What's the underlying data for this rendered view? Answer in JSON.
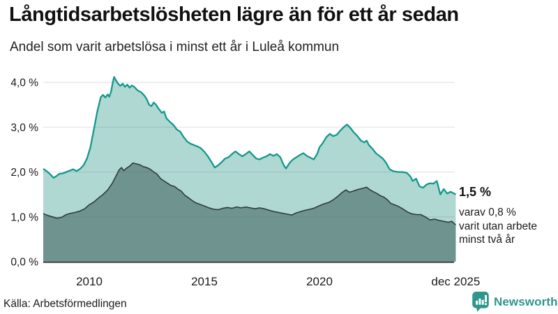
{
  "header": {
    "title": "Långtidsarbetslösheten lägre än för ett år sedan",
    "subtitle": "Andel som varit arbetslösa i minst ett år i Luleå kommun"
  },
  "footer": {
    "source": "Källa: Arbetsförmedlingen",
    "brand": "Newsworthy"
  },
  "colors": {
    "accent_teal": "#12998b",
    "light_fill": "#b0d8d2",
    "dark_line": "#2e3c3b",
    "dark_fill": "#6f948f",
    "gridline": "#e2e2ea",
    "axis": "#3a3a3a",
    "brand_teal": "#2e968a"
  },
  "chart_data": {
    "type": "area",
    "title": "Långtidsarbetslösheten lägre än för ett år sedan",
    "subtitle": "Andel som varit arbetslösa i minst ett år i Luleå kommun",
    "xlabel": "",
    "ylabel": "",
    "xlim": [
      2008.0,
      2025.92
    ],
    "ylim": [
      0,
      4.3
    ],
    "grid": true,
    "legend_position": "none",
    "y_ticks": [
      {
        "label": "0,0 %",
        "value": 0
      },
      {
        "label": "1,0 %",
        "value": 1
      },
      {
        "label": "2,0 %",
        "value": 2
      },
      {
        "label": "3,0 %",
        "value": 3
      },
      {
        "label": "4,0 %",
        "value": 4
      }
    ],
    "x_ticks": [
      {
        "label": "2010",
        "value": 2010
      },
      {
        "label": "2015",
        "value": 2015
      },
      {
        "label": "2020",
        "value": 2020
      },
      {
        "label": "dec 2025",
        "value": 2025.92
      }
    ],
    "annotation": {
      "value_label": "1,5 %",
      "lines": [
        "varav 0,8 %",
        "varit utan arbete",
        "minst två år"
      ]
    },
    "series": [
      {
        "name": "Arbetslösa minst ett år",
        "final_value": 1.5,
        "points": [
          [
            2008.0,
            2.07
          ],
          [
            2008.15,
            2.02
          ],
          [
            2008.3,
            1.95
          ],
          [
            2008.45,
            1.87
          ],
          [
            2008.55,
            1.9
          ],
          [
            2008.7,
            1.96
          ],
          [
            2008.85,
            1.97
          ],
          [
            2009.0,
            2.0
          ],
          [
            2009.15,
            2.03
          ],
          [
            2009.3,
            2.06
          ],
          [
            2009.45,
            2.02
          ],
          [
            2009.6,
            2.07
          ],
          [
            2009.75,
            2.15
          ],
          [
            2009.9,
            2.3
          ],
          [
            2010.05,
            2.55
          ],
          [
            2010.2,
            2.95
          ],
          [
            2010.35,
            3.35
          ],
          [
            2010.5,
            3.67
          ],
          [
            2010.6,
            3.72
          ],
          [
            2010.7,
            3.66
          ],
          [
            2010.8,
            3.73
          ],
          [
            2010.87,
            3.68
          ],
          [
            2010.95,
            3.8
          ],
          [
            2011.02,
            4.0
          ],
          [
            2011.08,
            4.12
          ],
          [
            2011.15,
            4.05
          ],
          [
            2011.25,
            3.97
          ],
          [
            2011.35,
            3.92
          ],
          [
            2011.45,
            3.97
          ],
          [
            2011.55,
            3.9
          ],
          [
            2011.65,
            3.95
          ],
          [
            2011.75,
            3.88
          ],
          [
            2011.85,
            3.93
          ],
          [
            2011.95,
            3.9
          ],
          [
            2012.1,
            3.82
          ],
          [
            2012.25,
            3.78
          ],
          [
            2012.4,
            3.7
          ],
          [
            2012.5,
            3.62
          ],
          [
            2012.6,
            3.5
          ],
          [
            2012.7,
            3.47
          ],
          [
            2012.8,
            3.55
          ],
          [
            2012.9,
            3.5
          ],
          [
            2013.0,
            3.42
          ],
          [
            2013.15,
            3.32
          ],
          [
            2013.25,
            3.35
          ],
          [
            2013.35,
            3.2
          ],
          [
            2013.5,
            3.12
          ],
          [
            2013.65,
            3.05
          ],
          [
            2013.8,
            2.95
          ],
          [
            2013.95,
            2.9
          ],
          [
            2014.1,
            2.78
          ],
          [
            2014.25,
            2.68
          ],
          [
            2014.4,
            2.63
          ],
          [
            2014.55,
            2.6
          ],
          [
            2014.7,
            2.57
          ],
          [
            2014.85,
            2.53
          ],
          [
            2015.0,
            2.45
          ],
          [
            2015.15,
            2.35
          ],
          [
            2015.3,
            2.23
          ],
          [
            2015.45,
            2.1
          ],
          [
            2015.6,
            2.15
          ],
          [
            2015.75,
            2.22
          ],
          [
            2015.9,
            2.3
          ],
          [
            2016.05,
            2.33
          ],
          [
            2016.2,
            2.4
          ],
          [
            2016.35,
            2.46
          ],
          [
            2016.5,
            2.4
          ],
          [
            2016.65,
            2.35
          ],
          [
            2016.8,
            2.4
          ],
          [
            2016.95,
            2.46
          ],
          [
            2017.1,
            2.38
          ],
          [
            2017.25,
            2.3
          ],
          [
            2017.4,
            2.28
          ],
          [
            2017.55,
            2.32
          ],
          [
            2017.7,
            2.35
          ],
          [
            2017.85,
            2.4
          ],
          [
            2018.0,
            2.36
          ],
          [
            2018.15,
            2.4
          ],
          [
            2018.3,
            2.33
          ],
          [
            2018.45,
            2.15
          ],
          [
            2018.55,
            2.08
          ],
          [
            2018.7,
            2.2
          ],
          [
            2018.85,
            2.28
          ],
          [
            2019.0,
            2.33
          ],
          [
            2019.15,
            2.38
          ],
          [
            2019.3,
            2.42
          ],
          [
            2019.45,
            2.36
          ],
          [
            2019.6,
            2.32
          ],
          [
            2019.75,
            2.28
          ],
          [
            2019.9,
            2.4
          ],
          [
            2020.0,
            2.55
          ],
          [
            2020.15,
            2.65
          ],
          [
            2020.3,
            2.78
          ],
          [
            2020.45,
            2.85
          ],
          [
            2020.6,
            2.8
          ],
          [
            2020.75,
            2.83
          ],
          [
            2020.9,
            2.92
          ],
          [
            2021.05,
            3.0
          ],
          [
            2021.2,
            3.06
          ],
          [
            2021.35,
            2.98
          ],
          [
            2021.5,
            2.88
          ],
          [
            2021.65,
            2.8
          ],
          [
            2021.8,
            2.7
          ],
          [
            2021.95,
            2.66
          ],
          [
            2022.05,
            2.7
          ],
          [
            2022.15,
            2.6
          ],
          [
            2022.3,
            2.52
          ],
          [
            2022.45,
            2.42
          ],
          [
            2022.6,
            2.36
          ],
          [
            2022.75,
            2.3
          ],
          [
            2022.9,
            2.2
          ],
          [
            2023.05,
            2.06
          ],
          [
            2023.2,
            2.02
          ],
          [
            2023.4,
            2.0
          ],
          [
            2023.6,
            2.0
          ],
          [
            2023.8,
            1.98
          ],
          [
            2023.95,
            1.9
          ],
          [
            2024.05,
            1.8
          ],
          [
            2024.2,
            1.85
          ],
          [
            2024.35,
            1.68
          ],
          [
            2024.5,
            1.65
          ],
          [
            2024.65,
            1.72
          ],
          [
            2024.8,
            1.75
          ],
          [
            2024.95,
            1.74
          ],
          [
            2025.1,
            1.8
          ],
          [
            2025.25,
            1.5
          ],
          [
            2025.4,
            1.62
          ],
          [
            2025.55,
            1.52
          ],
          [
            2025.7,
            1.56
          ],
          [
            2025.92,
            1.5
          ]
        ]
      },
      {
        "name": "Varav utan arbete minst två år",
        "final_value": 0.8,
        "points": [
          [
            2008.0,
            1.07
          ],
          [
            2008.2,
            1.03
          ],
          [
            2008.4,
            1.0
          ],
          [
            2008.6,
            0.97
          ],
          [
            2008.8,
            0.99
          ],
          [
            2009.0,
            1.05
          ],
          [
            2009.2,
            1.08
          ],
          [
            2009.4,
            1.1
          ],
          [
            2009.6,
            1.13
          ],
          [
            2009.8,
            1.18
          ],
          [
            2010.0,
            1.27
          ],
          [
            2010.2,
            1.33
          ],
          [
            2010.4,
            1.42
          ],
          [
            2010.6,
            1.5
          ],
          [
            2010.8,
            1.6
          ],
          [
            2011.0,
            1.75
          ],
          [
            2011.15,
            1.9
          ],
          [
            2011.3,
            2.05
          ],
          [
            2011.4,
            2.1
          ],
          [
            2011.5,
            2.03
          ],
          [
            2011.6,
            2.08
          ],
          [
            2011.75,
            2.13
          ],
          [
            2011.9,
            2.2
          ],
          [
            2012.05,
            2.18
          ],
          [
            2012.2,
            2.16
          ],
          [
            2012.35,
            2.12
          ],
          [
            2012.5,
            2.1
          ],
          [
            2012.65,
            2.06
          ],
          [
            2012.8,
            2.0
          ],
          [
            2012.95,
            1.95
          ],
          [
            2013.1,
            1.85
          ],
          [
            2013.25,
            1.8
          ],
          [
            2013.4,
            1.75
          ],
          [
            2013.55,
            1.7
          ],
          [
            2013.7,
            1.68
          ],
          [
            2013.85,
            1.62
          ],
          [
            2014.0,
            1.57
          ],
          [
            2014.15,
            1.48
          ],
          [
            2014.3,
            1.43
          ],
          [
            2014.45,
            1.37
          ],
          [
            2014.6,
            1.32
          ],
          [
            2014.8,
            1.28
          ],
          [
            2015.0,
            1.24
          ],
          [
            2015.2,
            1.2
          ],
          [
            2015.4,
            1.17
          ],
          [
            2015.6,
            1.16
          ],
          [
            2015.8,
            1.19
          ],
          [
            2016.0,
            1.21
          ],
          [
            2016.2,
            1.19
          ],
          [
            2016.4,
            1.22
          ],
          [
            2016.6,
            1.2
          ],
          [
            2016.8,
            1.22
          ],
          [
            2017.0,
            1.2
          ],
          [
            2017.2,
            1.18
          ],
          [
            2017.4,
            1.2
          ],
          [
            2017.6,
            1.18
          ],
          [
            2017.8,
            1.15
          ],
          [
            2018.0,
            1.12
          ],
          [
            2018.2,
            1.1
          ],
          [
            2018.4,
            1.08
          ],
          [
            2018.6,
            1.06
          ],
          [
            2018.8,
            1.04
          ],
          [
            2019.0,
            1.09
          ],
          [
            2019.2,
            1.12
          ],
          [
            2019.4,
            1.15
          ],
          [
            2019.6,
            1.17
          ],
          [
            2019.8,
            1.2
          ],
          [
            2020.0,
            1.25
          ],
          [
            2020.2,
            1.29
          ],
          [
            2020.4,
            1.32
          ],
          [
            2020.6,
            1.38
          ],
          [
            2020.8,
            1.46
          ],
          [
            2021.0,
            1.55
          ],
          [
            2021.15,
            1.6
          ],
          [
            2021.3,
            1.55
          ],
          [
            2021.45,
            1.57
          ],
          [
            2021.6,
            1.6
          ],
          [
            2021.75,
            1.62
          ],
          [
            2021.9,
            1.64
          ],
          [
            2022.05,
            1.66
          ],
          [
            2022.2,
            1.6
          ],
          [
            2022.35,
            1.56
          ],
          [
            2022.5,
            1.52
          ],
          [
            2022.65,
            1.47
          ],
          [
            2022.8,
            1.44
          ],
          [
            2022.95,
            1.38
          ],
          [
            2023.1,
            1.3
          ],
          [
            2023.25,
            1.27
          ],
          [
            2023.4,
            1.24
          ],
          [
            2023.55,
            1.2
          ],
          [
            2023.7,
            1.15
          ],
          [
            2023.85,
            1.1
          ],
          [
            2024.0,
            1.07
          ],
          [
            2024.2,
            1.05
          ],
          [
            2024.4,
            1.05
          ],
          [
            2024.6,
            1.0
          ],
          [
            2024.8,
            0.93
          ],
          [
            2025.0,
            0.95
          ],
          [
            2025.2,
            0.92
          ],
          [
            2025.4,
            0.9
          ],
          [
            2025.6,
            0.88
          ],
          [
            2025.75,
            0.9
          ],
          [
            2025.92,
            0.82
          ]
        ]
      }
    ]
  }
}
